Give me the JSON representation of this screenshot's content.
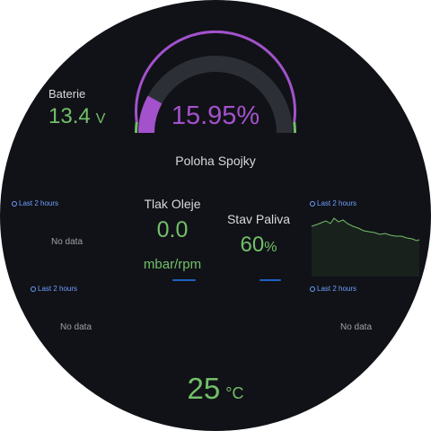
{
  "colors": {
    "background": "#111217",
    "green": "#73bf69",
    "purple": "#a352cc",
    "blue": "#6e9fff",
    "track": "#2c2f36"
  },
  "battery": {
    "label": "Baterie",
    "value": "13.4",
    "unit": "V"
  },
  "clutch": {
    "percent": "15.95%",
    "label": "Poloha Spojky",
    "fill_fraction": 0.1595
  },
  "oil": {
    "title": "Tlak Oleje",
    "value": "0.0",
    "unit": "mbar/rpm"
  },
  "fuel": {
    "title": "Stav Paliva",
    "value": "60",
    "unit": "%"
  },
  "panels": {
    "top_left": {
      "header": "Last 2 hours",
      "empty": "No data"
    },
    "top_right": {
      "header": "Last 2 hours"
    },
    "bottom_left": {
      "header": "Last 2 hours",
      "empty": "No data"
    },
    "bottom_right": {
      "header": "Last 2 hours",
      "empty": "No data"
    }
  },
  "temperature": {
    "value": "25",
    "unit": "°C"
  }
}
